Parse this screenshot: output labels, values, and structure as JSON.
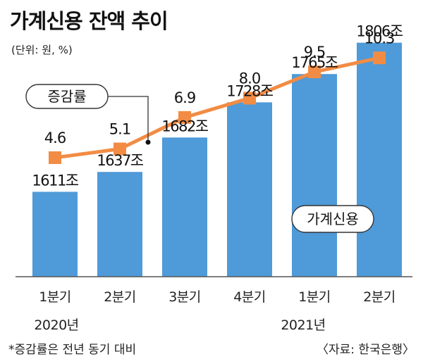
{
  "header": {
    "title": "가계신용 잔액 추이",
    "unit": "(단위: 원, %)"
  },
  "colors": {
    "bar": "#4f9ad8",
    "line": "#f28c44",
    "axis": "#555555",
    "callout_border": "#333333"
  },
  "callouts": {
    "line": "증감률",
    "bars": "가계신용"
  },
  "year_labels": {
    "y2020": "2020년",
    "y2021": "2021년"
  },
  "footer": {
    "note": "*증감률은 전년 동기 대비",
    "source": "〈자료: 한국은행〉"
  },
  "chart_data": {
    "type": "bar",
    "title": "가계신용 잔액 추이",
    "categories": [
      "1분기",
      "2분기",
      "3분기",
      "4분기",
      "1분기",
      "2분기"
    ],
    "series": [
      {
        "name": "가계신용",
        "type": "bar",
        "values": [
          1611,
          1637,
          1682,
          1728,
          1765,
          1806
        ],
        "labels": [
          "1611조",
          "1637조",
          "1682조",
          "1728조",
          "1765조",
          "1806조"
        ]
      },
      {
        "name": "증감률",
        "type": "line",
        "values": [
          4.6,
          5.1,
          6.9,
          8.0,
          9.5,
          10.3
        ],
        "labels": [
          "4.6",
          "5.1",
          "6.9",
          "8.0",
          "9.5",
          "10.3"
        ]
      }
    ],
    "ylim_bar": [
      1500,
      1825
    ],
    "ylim_line": [
      -2.2,
      12
    ],
    "grid": false
  }
}
